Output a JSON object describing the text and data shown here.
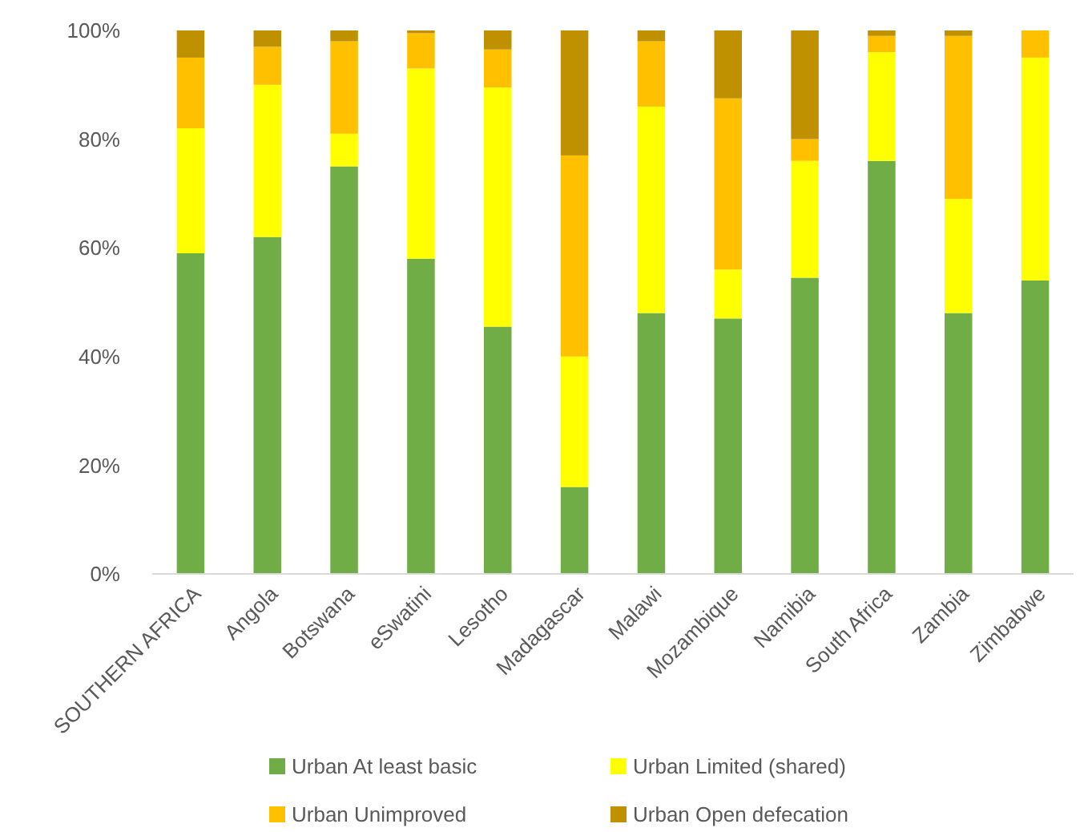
{
  "chart_data": {
    "type": "bar",
    "stacked": true,
    "categories": [
      "SOUTHERN AFRICA",
      "Angola",
      "Botswana",
      "eSwatini",
      "Lesotho",
      "Madagascar",
      "Malawi",
      "Mozambique",
      "Namibia",
      "South Africa",
      "Zambia",
      "Zimbabwe"
    ],
    "series": [
      {
        "name": "Urban At least basic",
        "color": "#70ad47",
        "values": [
          59,
          62,
          75,
          58,
          45.5,
          16,
          48,
          47,
          54.5,
          76,
          48,
          54
        ]
      },
      {
        "name": "Urban Limited (shared)",
        "color": "#ffff00",
        "values": [
          23,
          28,
          6,
          35,
          44,
          24,
          38,
          9,
          21.5,
          20,
          21,
          41
        ]
      },
      {
        "name": "Urban Unimproved",
        "color": "#ffc000",
        "values": [
          13,
          7,
          17,
          6.5,
          7,
          37,
          12,
          31.5,
          4,
          3,
          30,
          5
        ]
      },
      {
        "name": "Urban Open defecation",
        "color": "#bf9000",
        "values": [
          5,
          3,
          2,
          0.5,
          3.5,
          23,
          2,
          12.5,
          20,
          1,
          1,
          0
        ]
      }
    ],
    "ylim": [
      0,
      100
    ],
    "yticks": [
      {
        "value": 0,
        "label": "0%"
      },
      {
        "value": 20,
        "label": "20%"
      },
      {
        "value": 40,
        "label": "40%"
      },
      {
        "value": 60,
        "label": "60%"
      },
      {
        "value": 80,
        "label": "80%"
      },
      {
        "value": 100,
        "label": "100%"
      }
    ],
    "grid": false,
    "legend": "bottom"
  }
}
